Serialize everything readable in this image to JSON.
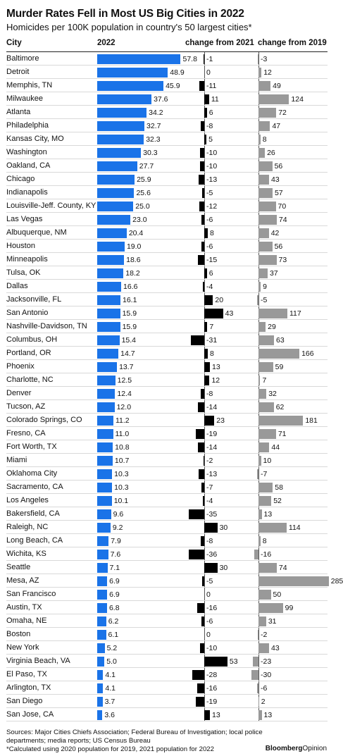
{
  "title": "Murder Rates Fell in Most US Big Cities in 2022",
  "subtitle": "Homicides per 100K population in country's 50 largest cities*",
  "headers": {
    "city": "City",
    "rate": "2022",
    "chg21": "change from 2021",
    "chg19": "change from 2019"
  },
  "footer": {
    "sources": "Sources: Major Cities Chiefs Association; Federal Bureau of Investigation; local police departments; media reports; US Census Bureau",
    "note": "*Calculated using 2020 population for 2019, 2021 population for 2022"
  },
  "logo": {
    "brand": "Bloomberg",
    "section": "Opinion"
  },
  "colors": {
    "rate_bar": "#1a73e8",
    "chg21_bar": "#000000",
    "chg19_bar": "#999999"
  },
  "chart_data": {
    "type": "table",
    "columns": [
      "City",
      "2022",
      "change from 2021",
      "change from 2019"
    ],
    "rows": [
      {
        "city": "Baltimore",
        "rate": 57.8,
        "chg21": -1,
        "chg19": -3
      },
      {
        "city": "Detroit",
        "rate": 48.9,
        "chg21": 0,
        "chg19": 12
      },
      {
        "city": "Memphis, TN",
        "rate": 45.9,
        "chg21": -11,
        "chg19": 49
      },
      {
        "city": "Milwaukee",
        "rate": 37.6,
        "chg21": 11,
        "chg19": 124
      },
      {
        "city": "Atlanta",
        "rate": 34.2,
        "chg21": 6,
        "chg19": 72
      },
      {
        "city": "Philadelphia",
        "rate": 32.7,
        "chg21": -8,
        "chg19": 47
      },
      {
        "city": "Kansas City, MO",
        "rate": 32.3,
        "chg21": 5,
        "chg19": 8
      },
      {
        "city": "Washington",
        "rate": 30.3,
        "chg21": -10,
        "chg19": 26
      },
      {
        "city": "Oakland, CA",
        "rate": 27.7,
        "chg21": -10,
        "chg19": 56
      },
      {
        "city": "Chicago",
        "rate": 25.9,
        "chg21": -13,
        "chg19": 43
      },
      {
        "city": "Indianapolis",
        "rate": 25.6,
        "chg21": -5,
        "chg19": 57
      },
      {
        "city": "Louisville-Jeff. County, KY",
        "rate": 25.0,
        "chg21": -12,
        "chg19": 70
      },
      {
        "city": "Las Vegas",
        "rate": 23.0,
        "chg21": -6,
        "chg19": 74
      },
      {
        "city": "Albuquerque, NM",
        "rate": 20.4,
        "chg21": 8,
        "chg19": 42
      },
      {
        "city": "Houston",
        "rate": 19.0,
        "chg21": -6,
        "chg19": 56
      },
      {
        "city": "Minneapolis",
        "rate": 18.6,
        "chg21": -15,
        "chg19": 73
      },
      {
        "city": "Tulsa, OK",
        "rate": 18.2,
        "chg21": 6,
        "chg19": 37
      },
      {
        "city": "Dallas",
        "rate": 16.6,
        "chg21": -4,
        "chg19": 9
      },
      {
        "city": "Jacksonville, FL",
        "rate": 16.1,
        "chg21": 20,
        "chg19": -5
      },
      {
        "city": "San Antonio",
        "rate": 15.9,
        "chg21": 43,
        "chg19": 117
      },
      {
        "city": "Nashville-Davidson, TN",
        "rate": 15.9,
        "chg21": 7,
        "chg19": 29
      },
      {
        "city": "Columbus, OH",
        "rate": 15.4,
        "chg21": -31,
        "chg19": 63
      },
      {
        "city": "Portland, OR",
        "rate": 14.7,
        "chg21": 8,
        "chg19": 166
      },
      {
        "city": "Phoenix",
        "rate": 13.7,
        "chg21": 13,
        "chg19": 59
      },
      {
        "city": "Charlotte, NC",
        "rate": 12.5,
        "chg21": 12,
        "chg19": 7
      },
      {
        "city": "Denver",
        "rate": 12.4,
        "chg21": -8,
        "chg19": 32
      },
      {
        "city": "Tucson, AZ",
        "rate": 12.0,
        "chg21": -14,
        "chg19": 62
      },
      {
        "city": "Colorado Springs, CO",
        "rate": 11.2,
        "chg21": 23,
        "chg19": 181
      },
      {
        "city": "Fresno, CA",
        "rate": 11.0,
        "chg21": -19,
        "chg19": 71
      },
      {
        "city": "Fort Worth, TX",
        "rate": 10.8,
        "chg21": -14,
        "chg19": 44
      },
      {
        "city": "Miami",
        "rate": 10.7,
        "chg21": -2,
        "chg19": 10
      },
      {
        "city": "Oklahoma City",
        "rate": 10.3,
        "chg21": -13,
        "chg19": -7
      },
      {
        "city": "Sacramento, CA",
        "rate": 10.3,
        "chg21": -7,
        "chg19": 58
      },
      {
        "city": "Los Angeles",
        "rate": 10.1,
        "chg21": -4,
        "chg19": 52
      },
      {
        "city": "Bakersfield, CA",
        "rate": 9.6,
        "chg21": -35,
        "chg19": 13
      },
      {
        "city": "Raleigh, NC",
        "rate": 9.2,
        "chg21": 30,
        "chg19": 114
      },
      {
        "city": "Long Beach, CA",
        "rate": 7.9,
        "chg21": -8,
        "chg19": 8
      },
      {
        "city": "Wichita, KS",
        "rate": 7.6,
        "chg21": -36,
        "chg19": -16
      },
      {
        "city": "Seattle",
        "rate": 7.1,
        "chg21": 30,
        "chg19": 74
      },
      {
        "city": "Mesa, AZ",
        "rate": 6.9,
        "chg21": -5,
        "chg19": 285
      },
      {
        "city": "San Francisco",
        "rate": 6.9,
        "chg21": 0,
        "chg19": 50
      },
      {
        "city": "Austin, TX",
        "rate": 6.8,
        "chg21": -16,
        "chg19": 99
      },
      {
        "city": "Omaha, NE",
        "rate": 6.2,
        "chg21": -6,
        "chg19": 31
      },
      {
        "city": "Boston",
        "rate": 6.1,
        "chg21": 0,
        "chg19": -2
      },
      {
        "city": "New York",
        "rate": 5.2,
        "chg21": -10,
        "chg19": 43
      },
      {
        "city": "Virginia Beach, VA",
        "rate": 5.0,
        "chg21": 53,
        "chg19": -23
      },
      {
        "city": "El Paso, TX",
        "rate": 4.1,
        "chg21": -28,
        "chg19": -30
      },
      {
        "city": "Arlington, TX",
        "rate": 4.1,
        "chg21": -16,
        "chg19": -6
      },
      {
        "city": "San Diego",
        "rate": 3.7,
        "chg21": -19,
        "chg19": 2
      },
      {
        "city": "San Jose, CA",
        "rate": 3.6,
        "chg21": 13,
        "chg19": 13
      }
    ]
  }
}
